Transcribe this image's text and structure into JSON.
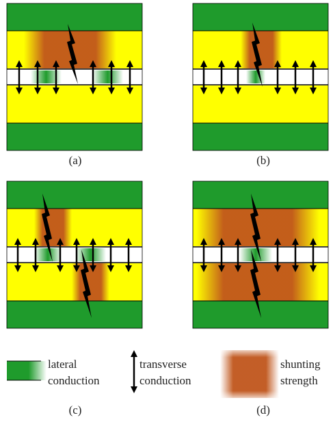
{
  "panels": [
    {
      "label": "(a)"
    },
    {
      "label": "(b)"
    },
    {
      "label": "(c)"
    },
    {
      "label": "(d)"
    }
  ],
  "legend": [
    {
      "line1": "lateral",
      "line2": "conduction"
    },
    {
      "line1": "transverse",
      "line2": "conduction"
    },
    {
      "line1": "shunting",
      "line2": "strength"
    }
  ]
}
